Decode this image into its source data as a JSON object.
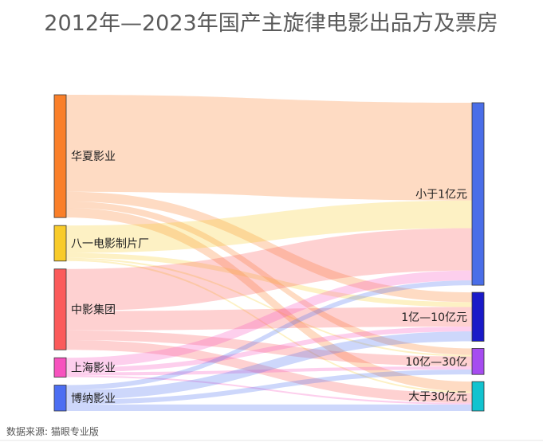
{
  "chart_data": {
    "type": "sankey",
    "title": "2012年—2023年国产主旋律电影出品方及票房",
    "source_note": "数据来源: 猫眼专业版",
    "sources": [
      {
        "name": "华夏影业",
        "color": "#fa7f29"
      },
      {
        "name": "八一电影制片厂",
        "color": "#f8cb2a"
      },
      {
        "name": "中影集团",
        "color": "#fb5a5a"
      },
      {
        "name": "上海影业",
        "color": "#f752be"
      },
      {
        "name": "博纳影业",
        "color": "#4c6ef2"
      }
    ],
    "targets": [
      {
        "name": "小于1亿元",
        "color": "#4a6ee8"
      },
      {
        "name": "1亿—10亿元",
        "color": "#1a1ac8"
      },
      {
        "name": "10亿—30亿",
        "color": "#a64cf0"
      },
      {
        "name": "大于30亿元",
        "color": "#12c3cf"
      }
    ],
    "links": [
      {
        "source": "华夏影业",
        "target": "小于1亿元",
        "value": 60
      },
      {
        "source": "华夏影业",
        "target": "1亿—10亿元",
        "value": 6
      },
      {
        "source": "华夏影业",
        "target": "10亿—30亿",
        "value": 4
      },
      {
        "source": "华夏影业",
        "target": "大于30亿元",
        "value": 6
      },
      {
        "source": "八一电影制片厂",
        "target": "小于1亿元",
        "value": 17
      },
      {
        "source": "八一电影制片厂",
        "target": "1亿—10亿元",
        "value": 3
      },
      {
        "source": "八一电影制片厂",
        "target": "10亿—30亿",
        "value": 1
      },
      {
        "source": "八一电影制片厂",
        "target": "大于30亿元",
        "value": 1
      },
      {
        "source": "中影集团",
        "target": "小于1亿元",
        "value": 26
      },
      {
        "source": "中影集团",
        "target": "1亿—10亿元",
        "value": 12
      },
      {
        "source": "中影集团",
        "target": "10亿—30亿",
        "value": 6
      },
      {
        "source": "中影集团",
        "target": "大于30亿元",
        "value": 6
      },
      {
        "source": "上海影业",
        "target": "小于1亿元",
        "value": 6
      },
      {
        "source": "上海影业",
        "target": "1亿—10亿元",
        "value": 3
      },
      {
        "source": "上海影业",
        "target": "10亿—30亿",
        "value": 2
      },
      {
        "source": "上海影业",
        "target": "大于30亿元",
        "value": 1
      },
      {
        "source": "博纳影业",
        "target": "小于1亿元",
        "value": 3
      },
      {
        "source": "博纳影业",
        "target": "1亿—10亿元",
        "value": 6
      },
      {
        "source": "博纳影业",
        "target": "10亿—30亿",
        "value": 3
      },
      {
        "source": "博纳影业",
        "target": "大于30亿元",
        "value": 4
      }
    ]
  }
}
